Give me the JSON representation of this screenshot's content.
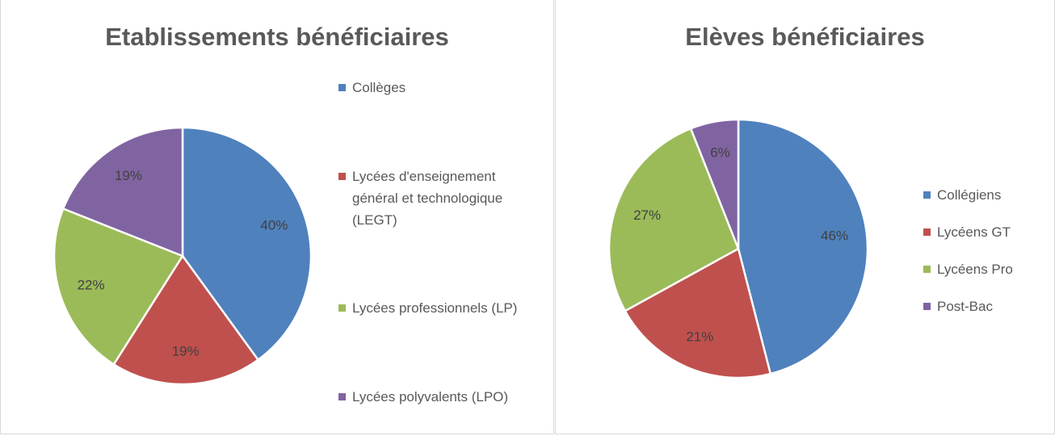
{
  "chart_data": [
    {
      "type": "pie",
      "title": "Etablissements bénéficiaires",
      "categories": [
        "Collèges",
        "Lycées d'enseignement général et technologique (LEGT)",
        "Lycées professionnels (LP)",
        "Lycées polyvalents (LPO)"
      ],
      "values": [
        40,
        19,
        22,
        19
      ],
      "value_labels": [
        "40%",
        "19%",
        "22%",
        "19%"
      ],
      "colors": [
        "#4f81bd",
        "#c0504d",
        "#9bbb59",
        "#8064a2"
      ]
    },
    {
      "type": "pie",
      "title": "Elèves bénéficiaires",
      "categories": [
        "Collégiens",
        "Lycéens GT",
        "Lycéens Pro",
        "Post-Bac"
      ],
      "values": [
        46,
        21,
        27,
        6
      ],
      "value_labels": [
        "46%",
        "21%",
        "27%",
        "6%"
      ],
      "colors": [
        "#4f81bd",
        "#c0504d",
        "#9bbb59",
        "#8064a2"
      ]
    }
  ]
}
